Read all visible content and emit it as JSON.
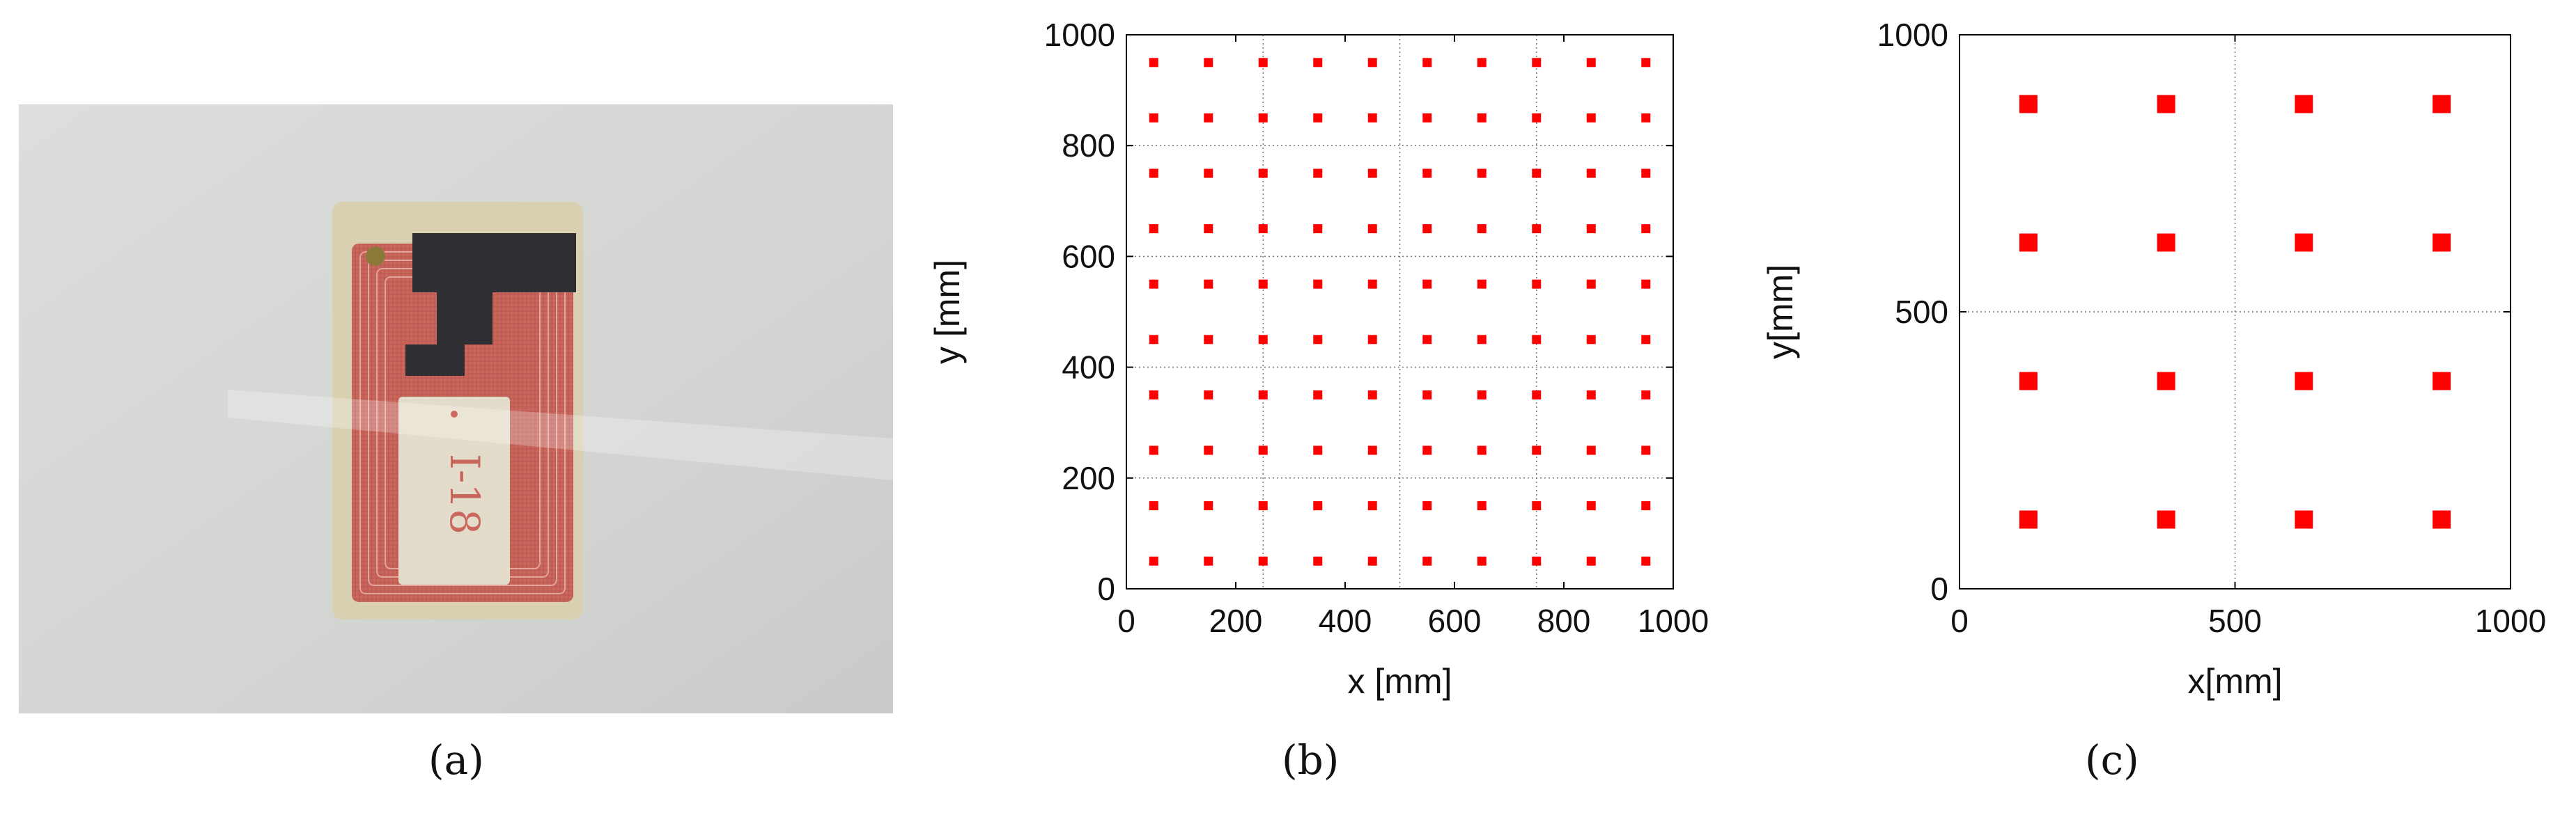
{
  "panels": [
    {
      "label": "(a)"
    },
    {
      "label": "(b)"
    },
    {
      "label": "(c)"
    }
  ],
  "photo": {
    "tag_text": "I-18",
    "colors": {
      "background": "#d6d8d6",
      "substrate": "#d8cfb0",
      "coil": "#c7665c",
      "metal": "#2f2f33"
    }
  },
  "chart_data": [
    {
      "type": "scatter",
      "panel": "(b)",
      "xlabel": "x [mm]",
      "ylabel": "y [mm]",
      "xlim": [
        0,
        1000
      ],
      "ylim": [
        0,
        1000
      ],
      "xticks": [
        0,
        200,
        400,
        600,
        800,
        1000
      ],
      "yticks": [
        0,
        200,
        400,
        600,
        800,
        1000
      ],
      "grid": true,
      "grid_x": [
        250,
        500,
        750
      ],
      "grid_y": [
        200,
        400,
        600,
        800
      ],
      "marker_color": "#ff0000",
      "x": [
        50,
        150,
        250,
        350,
        450,
        550,
        650,
        750,
        850,
        950
      ],
      "y": [
        50,
        150,
        250,
        350,
        450,
        550,
        650,
        750,
        850,
        950
      ]
    },
    {
      "type": "scatter",
      "panel": "(c)",
      "xlabel": "x[mm]",
      "ylabel": "y[mm]",
      "xlim": [
        0,
        1000
      ],
      "ylim": [
        0,
        1000
      ],
      "xticks": [
        0,
        500,
        1000
      ],
      "yticks": [
        0,
        500,
        1000
      ],
      "grid": true,
      "grid_x": [
        500
      ],
      "grid_y": [
        500
      ],
      "marker_color": "#ff0000",
      "x": [
        125,
        375,
        625,
        875
      ],
      "y": [
        125,
        375,
        625,
        875
      ]
    }
  ]
}
